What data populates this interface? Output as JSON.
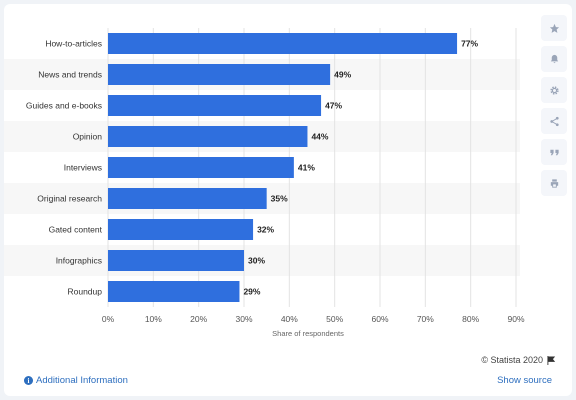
{
  "chart_data": {
    "type": "bar",
    "orientation": "horizontal",
    "categories": [
      "How-to-articles",
      "News and trends",
      "Guides and e-books",
      "Opinion",
      "Interviews",
      "Original research",
      "Gated content",
      "Infographics",
      "Roundup"
    ],
    "values": [
      77,
      49,
      47,
      44,
      41,
      35,
      32,
      30,
      29
    ],
    "value_labels": [
      "77%",
      "49%",
      "47%",
      "44%",
      "41%",
      "35%",
      "32%",
      "30%",
      "29%"
    ],
    "xlabel": "Share of respondents",
    "ylabel": "",
    "xlim": [
      0,
      90
    ],
    "x_ticks": [
      "0%",
      "10%",
      "20%",
      "30%",
      "40%",
      "50%",
      "60%",
      "70%",
      "80%",
      "90%"
    ],
    "grid": true,
    "bar_color": "#2f6fde",
    "alternate_row_shading": true
  },
  "footer": {
    "copyright": "© Statista 2020",
    "additional_info": "Additional Information",
    "show_source": "Show source"
  },
  "sidebar": {
    "buttons": [
      "star-icon",
      "bell-icon",
      "gear-icon",
      "share-icon",
      "quote-icon",
      "print-icon"
    ]
  },
  "colors": {
    "accent": "#2e6fbf",
    "bar": "#2f6fde",
    "page_bg": "#f0f3f7"
  }
}
